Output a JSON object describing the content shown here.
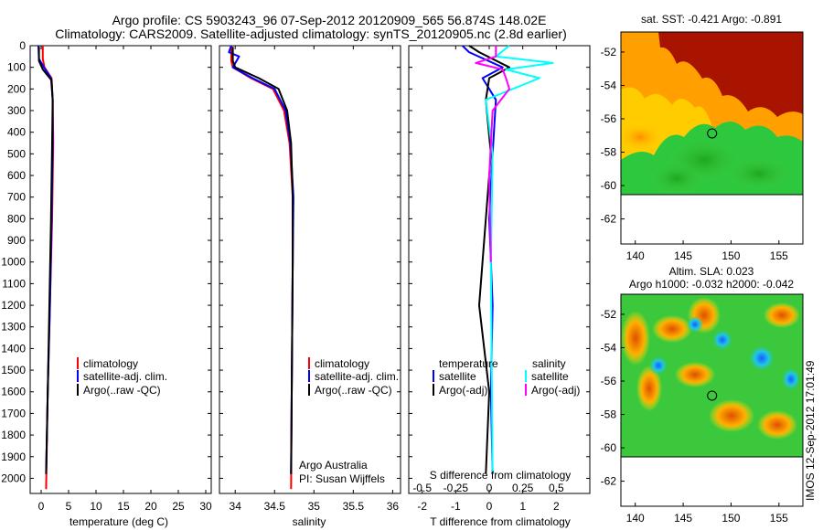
{
  "header": {
    "title_line1": "Argo profile: CS 5903243_96 07-Sep-2012 20120909_565 56.874S 148.02E",
    "title_line2": "Climatology: CARS2009. Satellite-adjusted climatology: synTS_20120905.nc (2.8d earlier)"
  },
  "depth_ticks": [
    "0",
    "100",
    "200",
    "300",
    "400",
    "500",
    "600",
    "700",
    "800",
    "900",
    "1000",
    "1100",
    "1200",
    "1300",
    "1400",
    "1500",
    "1600",
    "1700",
    "1800",
    "1900",
    "2000"
  ],
  "colors": {
    "climatology": "#ff0000",
    "satellite": "#0000ff",
    "argo": "#000000",
    "satellite_s": "#00ffff",
    "argo_s": "#ff00ff"
  },
  "chart_data": [
    {
      "type": "line",
      "panel": "temperature",
      "xlabel": "temperature (deg C)",
      "ylabel": "",
      "xlim": [
        -2,
        31
      ],
      "ylim": [
        2070,
        0
      ],
      "y_inverted": true,
      "x_ticks": [
        "0",
        "5",
        "10",
        "15",
        "20",
        "25",
        "30"
      ],
      "legend": [
        "climatology",
        "satellite-adj. clim.",
        "Argo(..raw -QC)"
      ],
      "series": [
        {
          "name": "climatology",
          "x": [
            0.3,
            0.3,
            0.6,
            1.9,
            2.1,
            2.2,
            2.0,
            1.6,
            1.2,
            0.9
          ],
          "y": [
            0,
            60,
            100,
            150,
            250,
            450,
            800,
            1200,
            1600,
            2050
          ]
        },
        {
          "name": "satellite-adj. clim.",
          "x": [
            -0.5,
            -0.4,
            0.5,
            1.8,
            2.1,
            2.1,
            1.9,
            1.6,
            1.2,
            0.9
          ],
          "y": [
            0,
            60,
            100,
            150,
            250,
            450,
            800,
            1200,
            1600,
            1980
          ]
        },
        {
          "name": "Argo(..raw -QC)",
          "x": [
            -0.4,
            -0.4,
            0.3,
            1.9,
            2.1,
            2.0,
            1.8,
            1.5,
            1.2,
            0.9
          ],
          "y": [
            5,
            70,
            110,
            160,
            250,
            450,
            800,
            1200,
            1600,
            1980
          ]
        }
      ]
    },
    {
      "type": "line",
      "panel": "salinity",
      "xlabel": "salinity",
      "ylabel": "",
      "xlim": [
        33.8,
        36.1
      ],
      "ylim": [
        2070,
        0
      ],
      "y_inverted": true,
      "x_ticks": [
        "34",
        "34.5",
        "35",
        "35.5",
        "36"
      ],
      "legend": [
        "climatology",
        "satellite-adj. clim.",
        "Argo(..raw -QC)"
      ],
      "annotation": [
        "Argo Australia",
        "PI: Susan Wijffels"
      ],
      "series": [
        {
          "name": "climatology",
          "x": [
            33.95,
            33.95,
            33.97,
            34.2,
            34.48,
            34.62,
            34.69,
            34.73,
            34.73,
            34.72,
            34.71
          ],
          "y": [
            0,
            70,
            100,
            150,
            200,
            300,
            450,
            700,
            1000,
            1500,
            2050
          ]
        },
        {
          "name": "satellite-adj. clim.",
          "x": [
            33.95,
            33.92,
            34.05,
            33.97,
            34.22,
            34.5,
            34.64,
            34.7,
            34.74,
            34.73,
            34.72,
            34.71
          ],
          "y": [
            0,
            30,
            50,
            100,
            150,
            200,
            300,
            450,
            700,
            1000,
            1500,
            1980
          ]
        },
        {
          "name": "Argo(..raw -QC)",
          "x": [
            33.97,
            33.97,
            34.0,
            34.3,
            34.55,
            34.66,
            34.71,
            34.73,
            34.73,
            34.72,
            34.71
          ],
          "y": [
            5,
            70,
            100,
            150,
            200,
            300,
            450,
            700,
            1000,
            1500,
            1980
          ]
        }
      ]
    },
    {
      "type": "line",
      "panel": "difference",
      "xlabel": "T difference from climatology",
      "xlabel_top": "S difference from climatology",
      "ylabel": "",
      "xlim": [
        -2.4,
        3.0
      ],
      "ylim": [
        2070,
        0
      ],
      "y_inverted": true,
      "x_ticks": [
        "-2",
        "-1",
        "0",
        "1",
        "2"
      ],
      "x_ticks_s": [
        "-0.5",
        "-0.25",
        "0",
        "0.25",
        "0.5"
      ],
      "legend_t_title": "temperature",
      "legend_s_title": "salinity",
      "legend_t": [
        "satellite",
        "Argo(-adj)"
      ],
      "legend_s": [
        "satellite",
        "Argo(-adj)"
      ],
      "series": [
        {
          "name": "T satellite",
          "x": [
            -0.8,
            -0.6,
            0.4,
            -0.2,
            0.2,
            0.1,
            0.0,
            0.1,
            0.05,
            0.1
          ],
          "y": [
            0,
            30,
            100,
            150,
            250,
            500,
            800,
            1200,
            1600,
            1980
          ]
        },
        {
          "name": "T Argo(-adj)",
          "x": [
            -0.6,
            -0.3,
            0.6,
            0.0,
            -0.1,
            0.05,
            -0.1,
            -0.3,
            0.0,
            -0.1
          ],
          "y": [
            0,
            30,
            100,
            150,
            250,
            500,
            800,
            1200,
            1600,
            1980
          ]
        },
        {
          "name": "S satellite",
          "x": [
            0.6,
            0.2,
            1.9,
            0.5,
            1.5,
            -0.1,
            0.1,
            0.05,
            0.1
          ],
          "y": [
            0,
            50,
            80,
            110,
            150,
            250,
            500,
            1000,
            1980
          ]
        },
        {
          "name": "S Argo(-adj)",
          "x": [
            0.2,
            0.2,
            -0.4,
            0.4,
            0.5,
            0.6,
            0.1,
            0.0,
            0.05
          ],
          "y": [
            0,
            50,
            80,
            110,
            150,
            200,
            300,
            600,
            1000
          ]
        }
      ]
    },
    {
      "type": "heatmap",
      "panel": "sst-map",
      "title": "sat. SST: -0.421  Argo: -0.891",
      "x_ticks": [
        "140",
        "145",
        "150",
        "155"
      ],
      "y_ticks": [
        "-52",
        "-54",
        "-56",
        "-58",
        "-60",
        "-62"
      ],
      "xlim": [
        138.5,
        157.5
      ],
      "ylim": [
        -63.5,
        -50.8
      ],
      "argo_position": {
        "lon": 148.02,
        "lat": -56.874
      }
    },
    {
      "type": "heatmap",
      "panel": "sla-map",
      "title_line1": "Altim. SLA: 0.023",
      "title_line2": "Argo h1000: -0.032  h2000: -0.042",
      "x_ticks": [
        "140",
        "145",
        "150",
        "155"
      ],
      "y_ticks": [
        "-52",
        "-54",
        "-56",
        "-58",
        "-60",
        "-62"
      ],
      "xlim": [
        138.5,
        157.5
      ],
      "ylim": [
        -63.5,
        -50.8
      ],
      "argo_position": {
        "lon": 148.02,
        "lat": -56.874
      }
    }
  ],
  "imos_label": "IMOS 12-Sep-2012 17:01:49"
}
